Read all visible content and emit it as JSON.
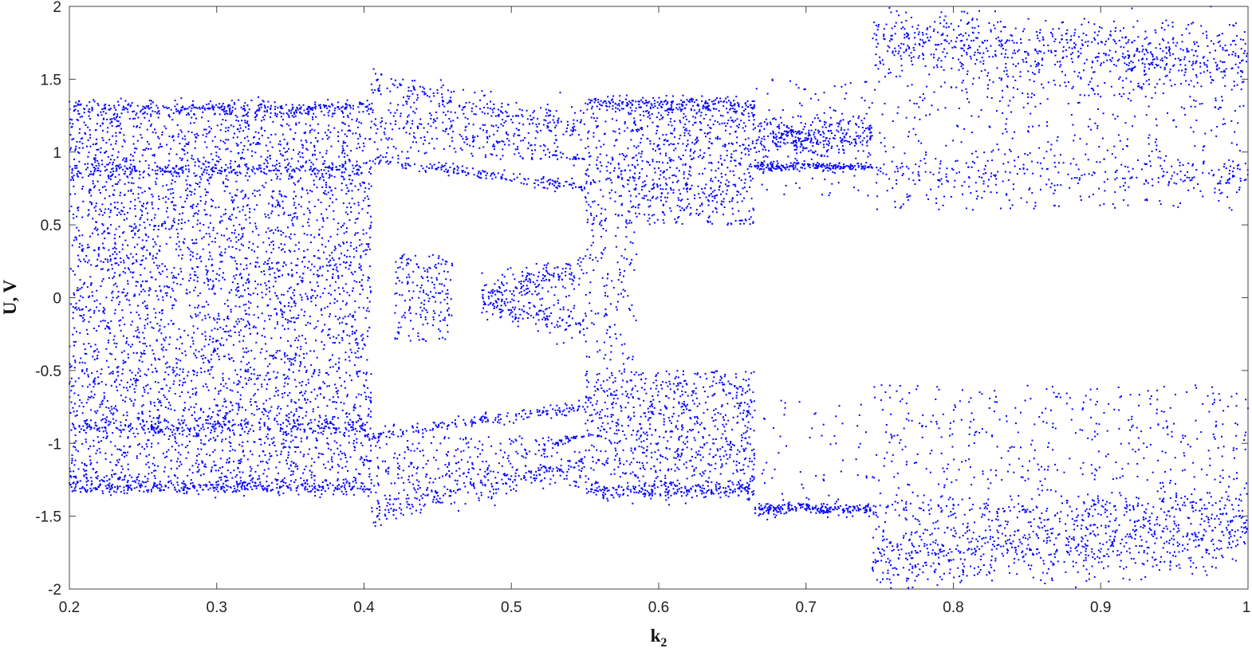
{
  "chart_data": {
    "type": "scatter",
    "title": "",
    "xlabel": "k",
    "xlabel_subscript": "2",
    "ylabel": "U, V",
    "xlim": [
      0.2,
      1.0
    ],
    "ylim": [
      -2,
      2
    ],
    "x_ticks": [
      "0.2",
      "0.3",
      "0.4",
      "0.5",
      "0.6",
      "0.7",
      "0.8",
      "0.9",
      "1"
    ],
    "y_ticks": [
      "2",
      "1.5",
      "1",
      "0.5",
      "0",
      "-0.5",
      "-1",
      "-1.5",
      "-2"
    ],
    "grid": false,
    "legend": "none",
    "marker_color": "#0000ff",
    "series": [
      {
        "description_of_structure": [
          {
            "x_range": [
              0.2,
              0.405
            ],
            "y_range": [
              -1.35,
              1.35
            ],
            "pattern": "dense chaotic band"
          },
          {
            "x_range": [
              0.405,
              0.55
            ],
            "upper_branches": [
              [
                0.405,
                1.5,
                0.55,
                1.15
              ],
              [
                0.41,
                0.95,
                0.55,
                0.75
              ]
            ],
            "lower_branches": [
              [
                0.405,
                -1.5,
                0.55,
                -1.15
              ],
              [
                0.41,
                -0.95,
                0.55,
                -0.75
              ]
            ]
          },
          {
            "x_range": [
              0.43,
              0.55
            ],
            "y_range": [
              -0.3,
              0.3
            ],
            "pattern": "central island"
          },
          {
            "x_range": [
              0.55,
              0.665
            ],
            "y_range": [
              -1.4,
              1.4
            ],
            "pattern": "chaotic band"
          },
          {
            "x_range": [
              0.67,
              0.745
            ],
            "upper_values": [
              1.1,
              0.9
            ],
            "lower_values": [
              -1.45
            ]
          },
          {
            "x_range": [
              0.745,
              1.0
            ],
            "upper_range": [
              0.6,
              1.9
            ],
            "lower_range": [
              -1.95,
              -0.6
            ],
            "pattern": "sparse chaotic"
          }
        ]
      }
    ]
  }
}
